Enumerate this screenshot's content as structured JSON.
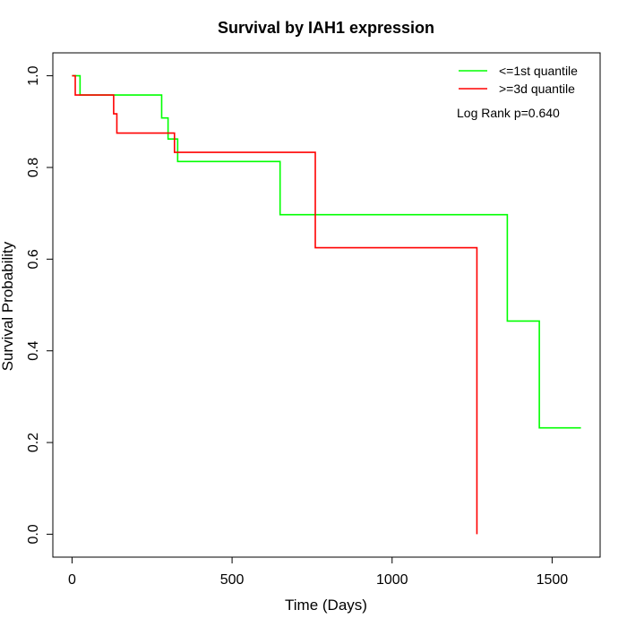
{
  "chart_data": {
    "type": "line",
    "title": "Survival by IAH1 expression",
    "xlabel": "Time (Days)",
    "ylabel": "Survival Probability",
    "xlim": [
      -60,
      1650
    ],
    "ylim": [
      -0.05,
      1.05
    ],
    "x_ticks": [
      0,
      500,
      1000,
      1500
    ],
    "x_tick_labels": [
      "0",
      "500",
      "1000",
      "1500"
    ],
    "y_ticks": [
      0.0,
      0.2,
      0.4,
      0.6,
      0.8,
      1.0
    ],
    "y_tick_labels": [
      "0.0",
      "0.2",
      "0.4",
      "0.6",
      "0.8",
      "1.0"
    ],
    "grid": false,
    "legend_position": "top-right",
    "annotation": "Log Rank p=0.640",
    "series": [
      {
        "name": "<=1st quantile",
        "color": "#00ff00",
        "step": true,
        "points": [
          [
            0,
            1.0
          ],
          [
            25,
            0.958
          ],
          [
            280,
            0.908
          ],
          [
            300,
            0.862
          ],
          [
            330,
            0.813
          ],
          [
            650,
            0.697
          ],
          [
            1360,
            0.465
          ],
          [
            1460,
            0.232
          ],
          [
            1590,
            0.232
          ]
        ]
      },
      {
        "name": ">=3d quantile",
        "color": "#ff0000",
        "step": true,
        "points": [
          [
            0,
            1.0
          ],
          [
            10,
            0.958
          ],
          [
            130,
            0.917
          ],
          [
            140,
            0.875
          ],
          [
            320,
            0.833
          ],
          [
            760,
            0.625
          ],
          [
            1265,
            0.0
          ]
        ]
      }
    ]
  }
}
